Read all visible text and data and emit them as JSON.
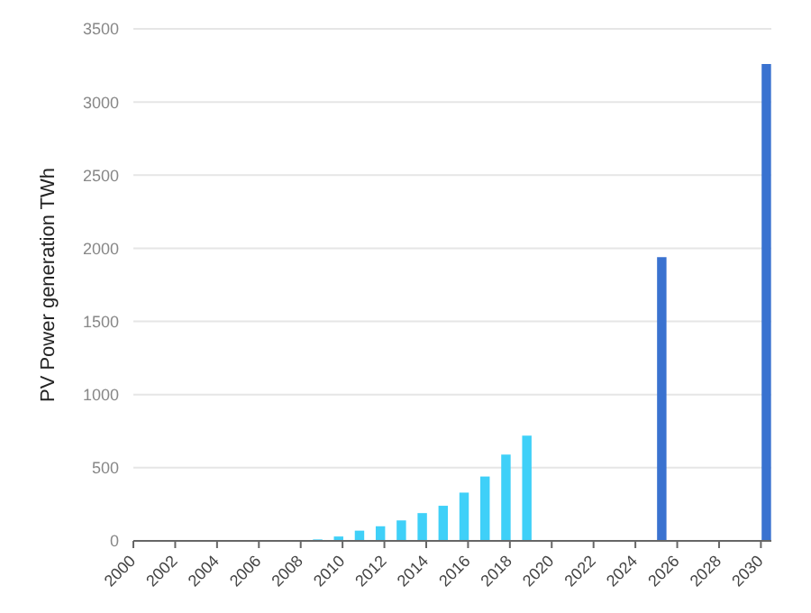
{
  "chart_data": {
    "type": "bar",
    "ylabel": "PV Power generation TWh",
    "series": [
      {
        "color": "#3fd0f8",
        "x": [
          2009,
          2010,
          2011,
          2012,
          2013,
          2014,
          2015,
          2016,
          2017,
          2018,
          2019
        ],
        "values": [
          10,
          30,
          70,
          100,
          140,
          190,
          240,
          330,
          440,
          590,
          720
        ]
      },
      {
        "color": "#3a72d0",
        "x": [
          2025,
          2030
        ],
        "values": [
          1940,
          3260
        ]
      }
    ],
    "xlim": [
      2000,
      2030.5
    ],
    "xticks": [
      2000,
      2002,
      2004,
      2006,
      2008,
      2010,
      2012,
      2014,
      2016,
      2018,
      2020,
      2022,
      2024,
      2026,
      2028,
      2030
    ],
    "ylim": [
      0,
      3500
    ],
    "yticks": [
      0,
      500,
      1000,
      1500,
      2000,
      2500,
      3000,
      3500
    ],
    "grid": "y",
    "legend": false
  }
}
